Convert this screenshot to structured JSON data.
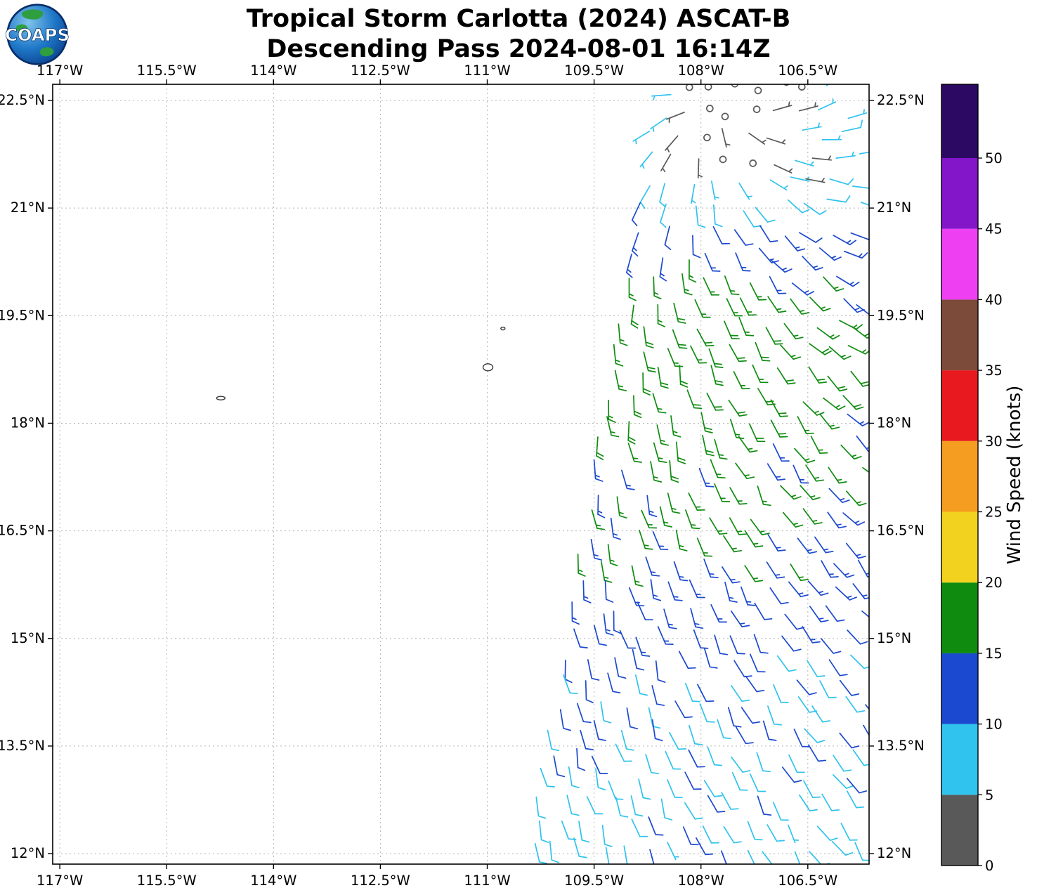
{
  "logo": {
    "text": "COAPS"
  },
  "chart_data": {
    "type": "wind_barb_map",
    "title": "Tropical Storm Carlotta (2024) ASCAT-B",
    "subtitle": "Descending Pass 2024-08-01 16:14Z",
    "x_axis": {
      "unit": "degrees west longitude",
      "tick_labels": [
        "117°W",
        "115.5°W",
        "114°W",
        "112.5°W",
        "111°W",
        "109.5°W",
        "108°W",
        "106.5°W"
      ],
      "tick_values": [
        117,
        115.5,
        114,
        112.5,
        111,
        109.5,
        108,
        106.5
      ],
      "edge_west_lonW": 117.1,
      "edge_east_lonW": 105.64,
      "labels_on": "top and bottom"
    },
    "y_axis": {
      "unit": "degrees north latitude",
      "tick_labels": [
        "22.5°N",
        "21°N",
        "19.5°N",
        "18°N",
        "16.5°N",
        "15°N",
        "13.5°N",
        "12°N"
      ],
      "tick_values": [
        22.5,
        21,
        19.5,
        18,
        16.5,
        15,
        13.5,
        12
      ],
      "edge_top_lat": 22.725,
      "edge_bottom_lat": 11.854,
      "labels_on": "left and right"
    },
    "grid": {
      "visible": true,
      "style": "dotted",
      "color": "#b5b5b5"
    },
    "colorbar": {
      "label": "Wind Speed (knots)",
      "tick_values": [
        0,
        5,
        10,
        15,
        20,
        25,
        30,
        35,
        40,
        45,
        50
      ],
      "band_width_knots": 5,
      "colors": [
        "#595959",
        "#2fc3ee",
        "#1b49cf",
        "#0f8c10",
        "#f2d21f",
        "#f59d20",
        "#e81a1f",
        "#7c4b3a",
        "#ef3ff3",
        "#8316c9",
        "#2c0a63"
      ],
      "band_meanings": [
        "0-5 grey",
        "5-10 cyan",
        "10-15 blue",
        "15-20 green",
        "20-25 yellow",
        "25-30 orange",
        "30-35 red",
        "35-40 brown",
        "40-45 magenta",
        "45-50 purple",
        "50+ dark purple"
      ]
    },
    "islands": [
      {
        "name": "small-islet-north",
        "lonW": 110.78,
        "lat": 19.32,
        "rx": 3,
        "ry": 2
      },
      {
        "name": "socorro-island",
        "lonW": 110.99,
        "lat": 18.78,
        "rx": 7,
        "ry": 5
      },
      {
        "name": "small-islet-west",
        "lonW": 114.74,
        "lat": 18.35,
        "rx": 6,
        "ry": 2.5
      }
    ],
    "wind_field": {
      "description": "ASCAT-B scatterometer surface wind barbs covering only the eastern swath of the map. Calm/weak grey winds (0-5 kt, open circles) near 107.6W 22.4N; cyan 5-10 kt around the calm area, in the northeast corner and across the far south; blue 10-15 kt over most of the swath; a green 15-20 kt band through the middle of the swath near 106-108.5W / 17.5-20.5N. Flow spirals gently inward toward the weak-wind centre: wind from SSE over most of the swath, from E/NE in the northeast corner. A few rain-flagged grey barbs mixed into the northeast corner.",
      "barb_units": "knots",
      "center_lonW": 107.6,
      "center_lat": 22.35,
      "profile_r_deg": [
        0,
        0.7,
        1.2,
        2,
        3,
        4,
        5,
        6.5,
        8,
        10,
        12
      ],
      "profile_speed_kt": [
        1.5,
        2.5,
        5.5,
        10,
        13,
        13.5,
        12,
        10.5,
        7.5,
        6.5,
        6
      ],
      "azimuth_amp": 0.38,
      "azimuth_peak_deg": 205,
      "spiral_offset_deg": -25,
      "grid_step_deg": 0.33,
      "jitter_deg": 0.1,
      "speed_noise_kt": 3.6,
      "dir_noise_deg": 24,
      "swath_left_ref_lat": 22.63,
      "swath_left_ref_lonW": 108.52,
      "swath_left_slope": 0.176,
      "swath_right_lonW": 105.7,
      "swath_top_lat": 22.68,
      "swath_bottom_lat": 11.95,
      "flag_lat_min": 21.2,
      "flag_lonW_max": 107.3,
      "flag_prob": 0.3,
      "max_speed_cap_kt": 19.4,
      "seed": 7
    }
  }
}
